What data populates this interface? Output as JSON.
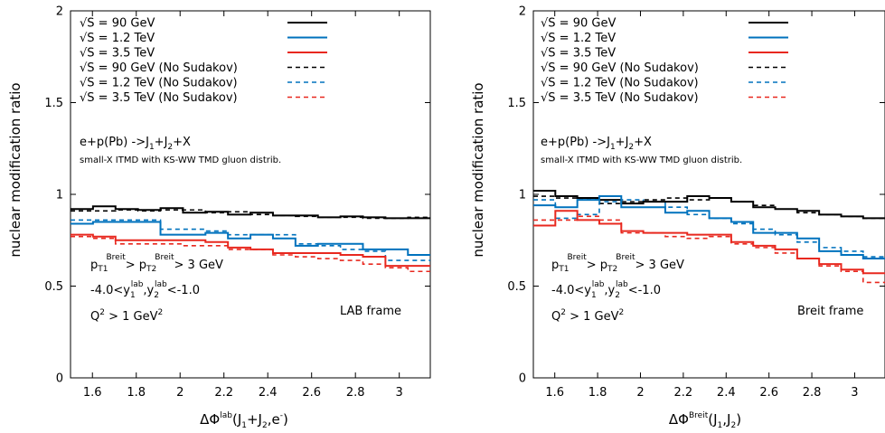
{
  "chart_data": [
    {
      "type": "line",
      "xlabel_main": "ΔΦ",
      "xlabel_sup": "lab",
      "xlabel_tail": "(J",
      "xlabel_s1": "1",
      "xlabel_plus": "+J",
      "xlabel_s2": "2",
      "xlabel_end": ",e",
      "xlabel_esup": "-",
      "xlabel_close": ")",
      "ylabel": "nuclear modification ratio",
      "xlim": [
        1.5,
        3.14159
      ],
      "ylim": [
        0,
        2
      ],
      "xticks": [
        "1.6",
        "1.8",
        "2",
        "2.2",
        "2.4",
        "2.6",
        "2.8",
        "3"
      ],
      "yticks": [
        "0",
        "0.5",
        "1",
        "1.5",
        "2"
      ],
      "frame_label": "LAB frame",
      "bin_edges": [
        1.5,
        1.6026,
        1.7053,
        1.8079,
        1.9105,
        2.0132,
        2.1158,
        2.2184,
        2.3211,
        2.4237,
        2.5263,
        2.629,
        2.7316,
        2.8342,
        2.9369,
        3.0395,
        3.1416
      ],
      "series": [
        {
          "name": "√S = 90 GeV",
          "color": "#000000",
          "dashed": false,
          "values": [
            0.92,
            0.935,
            0.92,
            0.915,
            0.925,
            0.9,
            0.905,
            0.89,
            0.9,
            0.885,
            0.885,
            0.875,
            0.88,
            0.875,
            0.87,
            0.87
          ]
        },
        {
          "name": "√S = 1.2 TeV",
          "color": "#0072bd",
          "dashed": false,
          "values": [
            0.84,
            0.85,
            0.85,
            0.85,
            0.78,
            0.78,
            0.79,
            0.76,
            0.78,
            0.76,
            0.72,
            0.73,
            0.73,
            0.7,
            0.7,
            0.67
          ]
        },
        {
          "name": "√S = 3.5 TeV",
          "color": "#e8281f",
          "dashed": false,
          "values": [
            0.78,
            0.77,
            0.75,
            0.75,
            0.75,
            0.75,
            0.74,
            0.71,
            0.7,
            0.68,
            0.68,
            0.68,
            0.67,
            0.66,
            0.61,
            0.61
          ]
        },
        {
          "name": "√S = 90 GeV (No Sudakov)",
          "color": "#000000",
          "dashed": true,
          "values": [
            0.91,
            0.91,
            0.915,
            0.91,
            0.915,
            0.915,
            0.9,
            0.905,
            0.89,
            0.885,
            0.88,
            0.875,
            0.875,
            0.87,
            0.87,
            0.875
          ]
        },
        {
          "name": "√S = 1.2 TeV (No Sudakov)",
          "color": "#0072bd",
          "dashed": true,
          "values": [
            0.86,
            0.86,
            0.86,
            0.86,
            0.81,
            0.81,
            0.8,
            0.78,
            0.78,
            0.78,
            0.73,
            0.72,
            0.7,
            0.69,
            0.64,
            0.64
          ]
        },
        {
          "name": "√S = 3.5 TeV (No Sudakov)",
          "color": "#e8281f",
          "dashed": true,
          "values": [
            0.77,
            0.76,
            0.73,
            0.73,
            0.73,
            0.72,
            0.72,
            0.7,
            0.7,
            0.67,
            0.66,
            0.65,
            0.64,
            0.62,
            0.6,
            0.58
          ]
        }
      ]
    },
    {
      "type": "line",
      "xlabel_main": "ΔΦ",
      "xlabel_sup": "Breit",
      "xlabel_tail": "(J",
      "xlabel_s1": "1",
      "xlabel_plus": ",J",
      "xlabel_s2": "2",
      "xlabel_end": "",
      "xlabel_esup": "",
      "xlabel_close": ")",
      "ylabel": "nuclear modification ratio",
      "xlim": [
        1.5,
        3.14159
      ],
      "ylim": [
        0,
        2
      ],
      "xticks": [
        "1.6",
        "1.8",
        "2",
        "2.2",
        "2.4",
        "2.6",
        "2.8",
        "3"
      ],
      "yticks": [
        "0",
        "0.5",
        "1",
        "1.5",
        "2"
      ],
      "frame_label": "Breit frame",
      "bin_edges": [
        1.5,
        1.6026,
        1.7053,
        1.8079,
        1.9105,
        2.0132,
        2.1158,
        2.2184,
        2.3211,
        2.4237,
        2.5263,
        2.629,
        2.7316,
        2.8342,
        2.9369,
        3.0395,
        3.1416
      ],
      "series": [
        {
          "name": "√S = 90 GeV",
          "color": "#000000",
          "dashed": false,
          "values": [
            1.02,
            0.99,
            0.98,
            0.97,
            0.95,
            0.96,
            0.96,
            0.99,
            0.98,
            0.96,
            0.93,
            0.92,
            0.91,
            0.89,
            0.88,
            0.87
          ]
        },
        {
          "name": "√S = 1.2 TeV",
          "color": "#0072bd",
          "dashed": false,
          "values": [
            0.94,
            0.93,
            0.97,
            0.99,
            0.93,
            0.93,
            0.9,
            0.91,
            0.87,
            0.85,
            0.79,
            0.79,
            0.76,
            0.69,
            0.67,
            0.65
          ]
        },
        {
          "name": "√S = 3.5 TeV",
          "color": "#e8281f",
          "dashed": false,
          "values": [
            0.83,
            0.91,
            0.86,
            0.84,
            0.8,
            0.79,
            0.79,
            0.78,
            0.78,
            0.74,
            0.72,
            0.7,
            0.65,
            0.62,
            0.59,
            0.57
          ]
        },
        {
          "name": "√S = 90 GeV (No Sudakov)",
          "color": "#000000",
          "dashed": true,
          "values": [
            0.99,
            0.98,
            0.97,
            0.95,
            0.96,
            0.97,
            0.98,
            0.97,
            0.98,
            0.96,
            0.94,
            0.92,
            0.9,
            0.89,
            0.88,
            0.87
          ]
        },
        {
          "name": "√S = 1.2 TeV (No Sudakov)",
          "color": "#0072bd",
          "dashed": true,
          "values": [
            0.97,
            0.87,
            0.89,
            0.96,
            0.97,
            0.96,
            0.93,
            0.89,
            0.87,
            0.84,
            0.81,
            0.78,
            0.74,
            0.71,
            0.69,
            0.66
          ]
        },
        {
          "name": "√S = 3.5 TeV (No Sudakov)",
          "color": "#e8281f",
          "dashed": true,
          "values": [
            0.86,
            0.86,
            0.88,
            0.86,
            0.79,
            0.79,
            0.77,
            0.76,
            0.77,
            0.73,
            0.71,
            0.68,
            0.65,
            0.61,
            0.58,
            0.52
          ]
        }
      ]
    }
  ],
  "annotations": {
    "process_prefix": "e+p(Pb) ->J",
    "process_s1": "1",
    "process_plus": "+J",
    "process_s2": "2",
    "process_suffix": "+X",
    "model": "small-X ITMD with KS-WW TMD gluon distrib.",
    "pt_p": "p",
    "pt_T1": "T1",
    "pt_T2": "T2",
    "pt_breit": "Breit",
    "pt_gt": "> ",
    "pt_gt2": "> 3 GeV",
    "y_range_pre": "-4.0<y",
    "y_sub1": "1",
    "y_sub2": "2",
    "y_lab": "lab",
    "y_comma": ",y",
    "y_range_post": "<-1.0",
    "q_q": "Q",
    "q_exp": "2",
    "q_mid": " > 1 GeV",
    "q_exp2": "2"
  }
}
